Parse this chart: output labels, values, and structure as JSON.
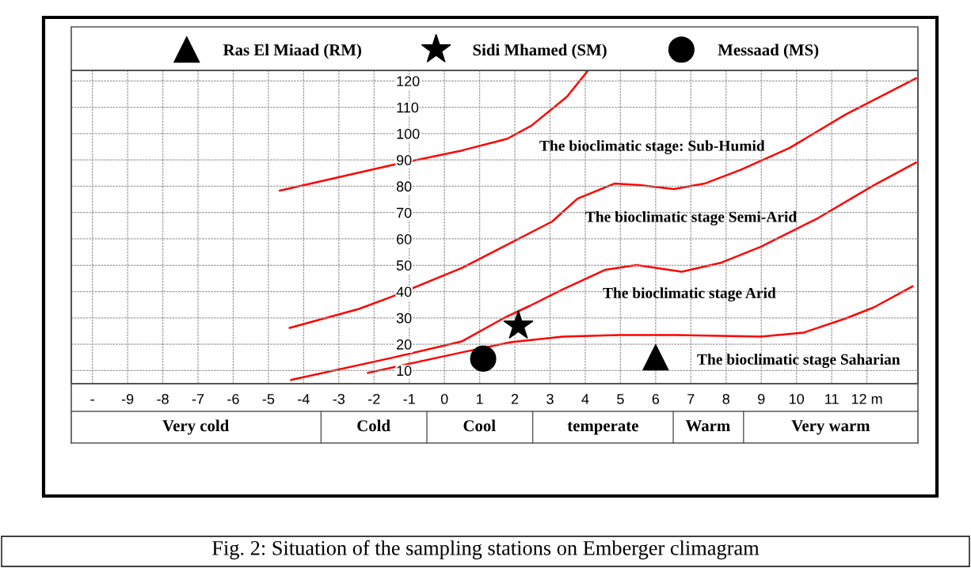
{
  "chart_data": {
    "type": "line",
    "title": "Fig. 2: Situation of the sampling stations on Emberger climagram",
    "xlim": [
      -10.6,
      13.45
    ],
    "ylim": [
      5,
      124
    ],
    "xticks": [
      {
        "value": -10,
        "label": "-"
      },
      -9,
      -8,
      -7,
      -6,
      -5,
      -4,
      -3,
      -2,
      -1,
      0,
      1,
      2,
      3,
      4,
      5,
      6,
      7,
      8,
      9,
      10,
      11,
      {
        "value": 12,
        "label": "12 m"
      }
    ],
    "yticks": [
      10,
      20,
      30,
      40,
      50,
      60,
      70,
      80,
      90,
      100,
      110,
      120
    ],
    "grid": true,
    "legend": "top",
    "line_style": "solid",
    "series": [
      {
        "color": "#ff0000",
        "x": [
          -4.68,
          -1.5,
          0.5,
          1.78,
          2.47,
          3.48,
          4.07
        ],
        "values": [
          78.3,
          88,
          93.6,
          98,
          103,
          114,
          123.8
        ]
      },
      {
        "color": "#ff0000",
        "x": [
          -4.4,
          -2.43,
          -1.5,
          0.5,
          1.67,
          3.06,
          3.78,
          4.83,
          5.55,
          6.52,
          7.39,
          8.43,
          9.8,
          11.4,
          13.4
        ],
        "values": [
          26.2,
          33.4,
          38,
          49,
          57,
          66.6,
          75.3,
          81,
          80.4,
          78.9,
          81,
          86.3,
          94.5,
          107.3,
          121
        ]
      },
      {
        "color": "#ff0000",
        "x": [
          -4.36,
          -1.5,
          0.5,
          1.67,
          2.43,
          3.37,
          4.58,
          5.46,
          6.74,
          7.87,
          8.99,
          10.6,
          12.2,
          13.4
        ],
        "values": [
          6.4,
          14.8,
          21.1,
          29.8,
          34.6,
          40.9,
          48.3,
          50.1,
          47.5,
          51,
          57,
          67.8,
          80.4,
          89
        ]
      },
      {
        "color": "#ff0000",
        "x": [
          -2.18,
          0.5,
          1.89,
          3.37,
          4.99,
          6.58,
          8.99,
          10.2,
          11.4,
          12.2,
          13.3
        ],
        "values": [
          9.1,
          16.9,
          20.8,
          22.9,
          23.5,
          23.5,
          22.9,
          24.4,
          29.8,
          34,
          42
        ]
      },
      {
        "type": "scatter",
        "name": "Ras El Miaad (RM)",
        "color": "#000000",
        "marker": "triangle",
        "x": [
          6.0
        ],
        "values": [
          15
        ]
      },
      {
        "type": "scatter",
        "name": "Sidi Mhamed (SM)",
        "color": "#000000",
        "marker": "star",
        "x": [
          2.1
        ],
        "values": [
          27
        ]
      },
      {
        "type": "scatter",
        "name": "Messaad (MS)",
        "color": "#000000",
        "marker": "circle",
        "x": [
          1.1
        ],
        "values": [
          14.5
        ]
      }
    ],
    "annotations": [
      "The bioclimatic stage: Sub-Humid",
      "The bioclimatic stage Semi-Arid",
      "The bioclimatic stage Arid",
      "The bioclimatic stage Saharian",
      "Very cold",
      "Cold",
      "Cool",
      "temperate",
      "Warm",
      "Very warm"
    ]
  }
}
